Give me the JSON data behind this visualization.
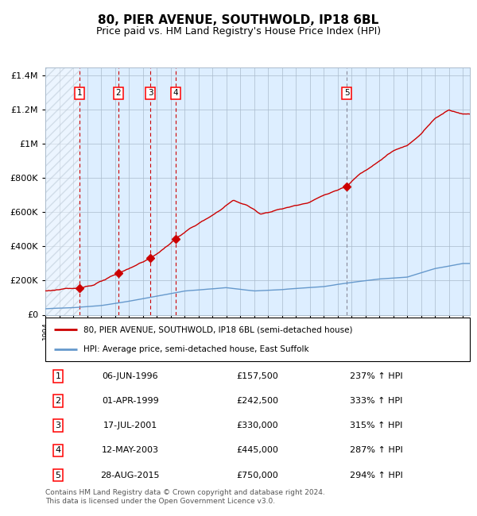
{
  "title": "80, PIER AVENUE, SOUTHWOLD, IP18 6BL",
  "subtitle": "Price paid vs. HM Land Registry's House Price Index (HPI)",
  "legend_line1": "80, PIER AVENUE, SOUTHWOLD, IP18 6BL (semi-detached house)",
  "legend_line2": "HPI: Average price, semi-detached house, East Suffolk",
  "footer": "Contains HM Land Registry data © Crown copyright and database right 2024.\nThis data is licensed under the Open Government Licence v3.0.",
  "sales": [
    {
      "num": 1,
      "date_label": "06-JUN-1996",
      "price": 157500,
      "pct": "237%",
      "year": 1996.44
    },
    {
      "num": 2,
      "date_label": "01-APR-1999",
      "price": 242500,
      "pct": "333%",
      "year": 1999.25
    },
    {
      "num": 3,
      "date_label": "17-JUL-2001",
      "price": 330000,
      "pct": "315%",
      "year": 2001.54
    },
    {
      "num": 4,
      "date_label": "12-MAY-2003",
      "price": 445000,
      "pct": "287%",
      "year": 2003.36
    },
    {
      "num": 5,
      "date_label": "28-AUG-2015",
      "price": 750000,
      "pct": "294%",
      "year": 2015.66
    }
  ],
  "ylim": [
    0,
    1450000
  ],
  "xlim_start": 1994.0,
  "xlim_end": 2024.5,
  "hpi_color": "#6699cc",
  "price_color": "#cc0000",
  "grid_color": "#aabbcc",
  "bg_color": "#ddeeff",
  "hatch_color": "#bbccdd",
  "vline_color_dashed": "#cc0000",
  "vline_color_dotted": "#888899"
}
